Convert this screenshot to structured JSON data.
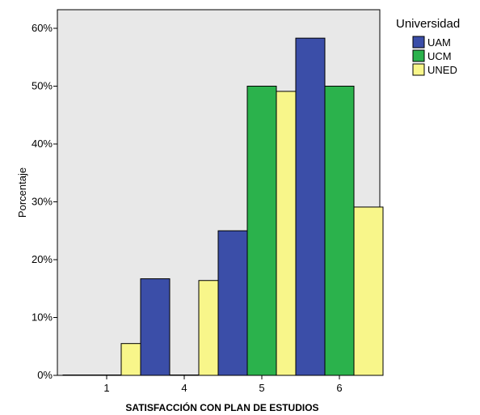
{
  "chart_data": {
    "type": "bar",
    "categories": [
      "1",
      "4",
      "5",
      "6"
    ],
    "series": [
      {
        "name": "UAM",
        "color": "#3b4ea8",
        "values": [
          0,
          16.7,
          25.0,
          58.3
        ]
      },
      {
        "name": "UCM",
        "color": "#2bb24c",
        "values": [
          0,
          0,
          50.0,
          50.0
        ]
      },
      {
        "name": "UNED",
        "color": "#f8f68a",
        "values": [
          5.5,
          16.4,
          49.1,
          29.1
        ]
      }
    ],
    "xlabel": "SATISFACCIÓN CON PLAN DE ESTUDIOS",
    "ylabel": "Porcentaje",
    "ylim": [
      0,
      60
    ],
    "yticks": [
      "0%",
      "10%",
      "20%",
      "30%",
      "40%",
      "50%",
      "60%"
    ],
    "legend_title": "Universidad",
    "legend_position": "top-right",
    "plot_background": "#e8e8e8",
    "grid": false
  }
}
